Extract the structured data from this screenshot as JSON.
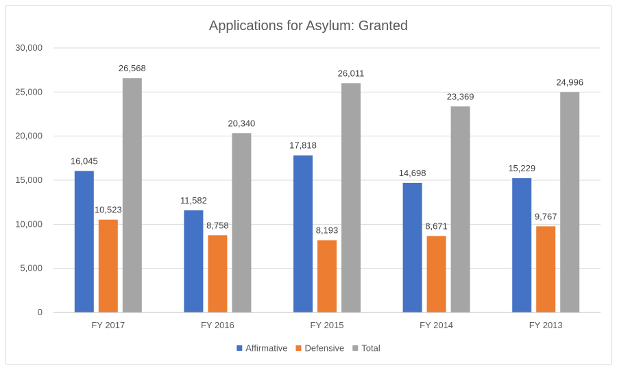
{
  "chart_data": {
    "type": "bar",
    "title": "Applications for Asylum: Granted",
    "xlabel": "",
    "ylabel": "",
    "categories": [
      "FY 2017",
      "FY 2016",
      "FY 2015",
      "FY 2014",
      "FY 2013"
    ],
    "series": [
      {
        "name": "Affirmative",
        "color": "#4472c4",
        "values": [
          16045,
          11582,
          17818,
          14698,
          15229
        ]
      },
      {
        "name": "Defensive",
        "color": "#ed7d31",
        "values": [
          10523,
          8758,
          8193,
          8671,
          9767
        ]
      },
      {
        "name": "Total",
        "color": "#a5a5a5",
        "values": [
          26568,
          20340,
          26011,
          23369,
          24996
        ]
      }
    ],
    "ylim": [
      0,
      30000
    ],
    "yticks": [
      0,
      5000,
      10000,
      15000,
      20000,
      25000,
      30000
    ],
    "grid": true,
    "legend_position": "bottom"
  }
}
